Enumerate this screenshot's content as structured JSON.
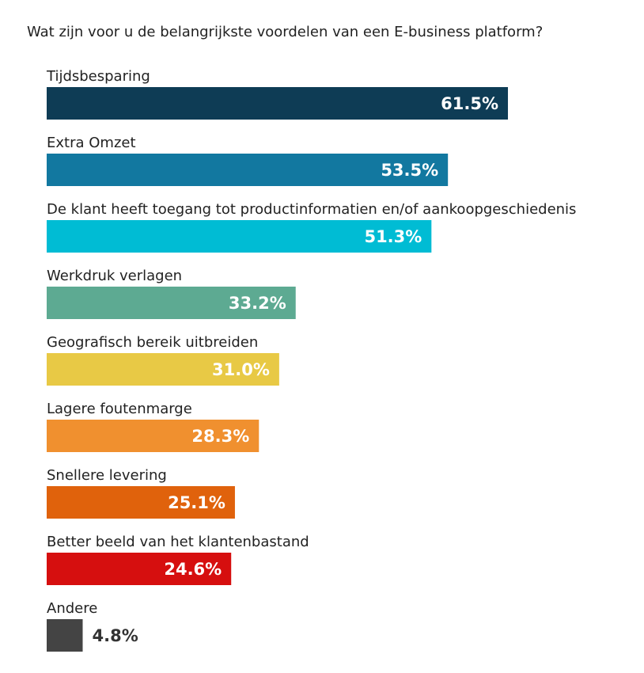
{
  "chart_data": {
    "type": "bar",
    "orientation": "horizontal",
    "title": "Wat zijn voor u de belangrijkste voordelen van een E-business platform?",
    "categories": [
      "Tijdsbesparing",
      "Extra Omzet",
      "De klant heeft toegang tot productinformatien en/of aankoopgeschiedenis",
      "Werkdruk verlagen",
      "Geografisch bereik uitbreiden",
      "Lagere foutenmarge",
      "Snellere levering",
      "Better beeld van het klantenbastand",
      "Andere"
    ],
    "values": [
      61.5,
      53.5,
      51.3,
      33.2,
      31.0,
      28.3,
      25.1,
      24.6,
      4.8
    ],
    "value_labels": [
      "61.5%",
      "53.5%",
      "51.3%",
      "33.2%",
      "31.0%",
      "28.3%",
      "25.1%",
      "24.6%",
      "4.8%"
    ],
    "colors": [
      "#0e3c55",
      "#1278a0",
      "#00bcd4",
      "#5daa92",
      "#e8c945",
      "#f0902f",
      "#e0620c",
      "#d60f0f",
      "#444444"
    ],
    "value_label_colors": [
      "#ffffff",
      "#ffffff",
      "#ffffff",
      "#ffffff",
      "#ffffff",
      "#ffffff",
      "#ffffff",
      "#ffffff",
      "#333333"
    ],
    "xlabel": "",
    "ylabel": "",
    "unit": "%",
    "grid": false,
    "legend": "none"
  }
}
